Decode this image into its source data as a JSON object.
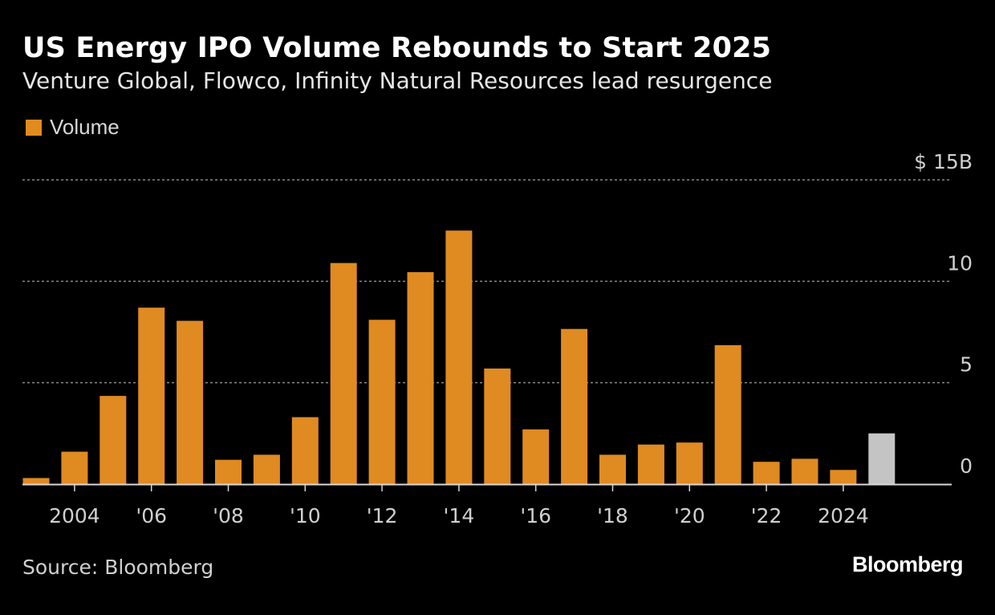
{
  "title": "US Energy IPO Volume Rebounds to Start 2025",
  "subtitle": "Venture Global, Flowco, Infinity Natural Resources lead resurgence",
  "legend": {
    "label": "Volume",
    "color": "#e08a22"
  },
  "source": "Source: Bloomberg",
  "brand": "Bloomberg",
  "colors": {
    "bar": "#e08a22",
    "highlight_bar": "#c4c4c4",
    "grid": "#8a8a8a",
    "axis": "#d9d9d9",
    "tick_text": "#d0d0d0"
  },
  "chart_data": {
    "type": "bar",
    "title": "US Energy IPO Volume Rebounds to Start 2025",
    "xlabel": "",
    "ylabel": "",
    "series_name": "Volume",
    "categories": [
      "2003",
      "2004",
      "2005",
      "2006",
      "2007",
      "2008",
      "2009",
      "2010",
      "2011",
      "2012",
      "2013",
      "2014",
      "2015",
      "2016",
      "2017",
      "2018",
      "2019",
      "2020",
      "2021",
      "2022",
      "2023",
      "2024",
      "2025"
    ],
    "values": [
      0.3,
      1.6,
      4.35,
      8.7,
      8.05,
      1.2,
      1.45,
      3.3,
      10.9,
      8.1,
      10.45,
      12.5,
      5.7,
      2.7,
      7.65,
      1.45,
      1.95,
      2.05,
      6.85,
      1.1,
      1.25,
      0.7,
      2.5
    ],
    "highlight": [
      "2025"
    ],
    "ylim": [
      0,
      15
    ],
    "yticks": [
      {
        "value": 15,
        "label": "$ 15B"
      },
      {
        "value": 10,
        "label": "10"
      },
      {
        "value": 5,
        "label": "5"
      },
      {
        "value": 0,
        "label": "0"
      }
    ],
    "xticks": [
      {
        "category": "2004",
        "label": "2004"
      },
      {
        "category": "2006",
        "label": "'06"
      },
      {
        "category": "2008",
        "label": "'08"
      },
      {
        "category": "2010",
        "label": "'10"
      },
      {
        "category": "2012",
        "label": "'12"
      },
      {
        "category": "2014",
        "label": "'14"
      },
      {
        "category": "2016",
        "label": "'16"
      },
      {
        "category": "2018",
        "label": "'18"
      },
      {
        "category": "2020",
        "label": "'20"
      },
      {
        "category": "2022",
        "label": "'22"
      },
      {
        "category": "2024",
        "label": "2024"
      }
    ],
    "grid": true,
    "legend_position": "top-left"
  }
}
